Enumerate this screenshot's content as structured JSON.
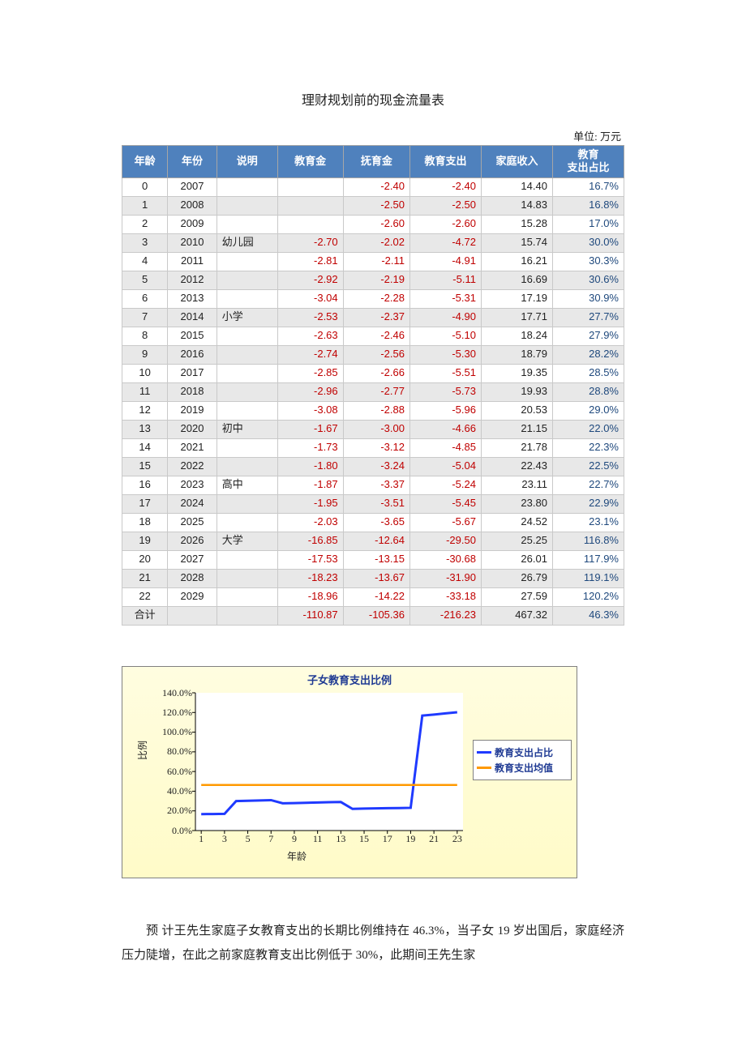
{
  "title": "理财规划前的现金流量表",
  "unit": "单位: 万元",
  "columns": [
    "年龄",
    "年份",
    "说明",
    "教育金",
    "抚育金",
    "教育支出",
    "家庭收入",
    "教育\n支出占比"
  ],
  "rows": [
    {
      "age": "0",
      "year": "2007",
      "note": "",
      "edu_fund": "",
      "raise_fund": "-2.40",
      "edu_out": "-2.40",
      "income": "14.40",
      "pct": "16.7%"
    },
    {
      "age": "1",
      "year": "2008",
      "note": "",
      "edu_fund": "",
      "raise_fund": "-2.50",
      "edu_out": "-2.50",
      "income": "14.83",
      "pct": "16.8%"
    },
    {
      "age": "2",
      "year": "2009",
      "note": "",
      "edu_fund": "",
      "raise_fund": "-2.60",
      "edu_out": "-2.60",
      "income": "15.28",
      "pct": "17.0%"
    },
    {
      "age": "3",
      "year": "2010",
      "note": "幼儿园",
      "edu_fund": "-2.70",
      "raise_fund": "-2.02",
      "edu_out": "-4.72",
      "income": "15.74",
      "pct": "30.0%"
    },
    {
      "age": "4",
      "year": "2011",
      "note": "",
      "edu_fund": "-2.81",
      "raise_fund": "-2.11",
      "edu_out": "-4.91",
      "income": "16.21",
      "pct": "30.3%"
    },
    {
      "age": "5",
      "year": "2012",
      "note": "",
      "edu_fund": "-2.92",
      "raise_fund": "-2.19",
      "edu_out": "-5.11",
      "income": "16.69",
      "pct": "30.6%"
    },
    {
      "age": "6",
      "year": "2013",
      "note": "",
      "edu_fund": "-3.04",
      "raise_fund": "-2.28",
      "edu_out": "-5.31",
      "income": "17.19",
      "pct": "30.9%"
    },
    {
      "age": "7",
      "year": "2014",
      "note": "小学",
      "edu_fund": "-2.53",
      "raise_fund": "-2.37",
      "edu_out": "-4.90",
      "income": "17.71",
      "pct": "27.7%"
    },
    {
      "age": "8",
      "year": "2015",
      "note": "",
      "edu_fund": "-2.63",
      "raise_fund": "-2.46",
      "edu_out": "-5.10",
      "income": "18.24",
      "pct": "27.9%"
    },
    {
      "age": "9",
      "year": "2016",
      "note": "",
      "edu_fund": "-2.74",
      "raise_fund": "-2.56",
      "edu_out": "-5.30",
      "income": "18.79",
      "pct": "28.2%"
    },
    {
      "age": "10",
      "year": "2017",
      "note": "",
      "edu_fund": "-2.85",
      "raise_fund": "-2.66",
      "edu_out": "-5.51",
      "income": "19.35",
      "pct": "28.5%"
    },
    {
      "age": "11",
      "year": "2018",
      "note": "",
      "edu_fund": "-2.96",
      "raise_fund": "-2.77",
      "edu_out": "-5.73",
      "income": "19.93",
      "pct": "28.8%"
    },
    {
      "age": "12",
      "year": "2019",
      "note": "",
      "edu_fund": "-3.08",
      "raise_fund": "-2.88",
      "edu_out": "-5.96",
      "income": "20.53",
      "pct": "29.0%"
    },
    {
      "age": "13",
      "year": "2020",
      "note": "初中",
      "edu_fund": "-1.67",
      "raise_fund": "-3.00",
      "edu_out": "-4.66",
      "income": "21.15",
      "pct": "22.0%"
    },
    {
      "age": "14",
      "year": "2021",
      "note": "",
      "edu_fund": "-1.73",
      "raise_fund": "-3.12",
      "edu_out": "-4.85",
      "income": "21.78",
      "pct": "22.3%"
    },
    {
      "age": "15",
      "year": "2022",
      "note": "",
      "edu_fund": "-1.80",
      "raise_fund": "-3.24",
      "edu_out": "-5.04",
      "income": "22.43",
      "pct": "22.5%"
    },
    {
      "age": "16",
      "year": "2023",
      "note": "高中",
      "edu_fund": "-1.87",
      "raise_fund": "-3.37",
      "edu_out": "-5.24",
      "income": "23.11",
      "pct": "22.7%"
    },
    {
      "age": "17",
      "year": "2024",
      "note": "",
      "edu_fund": "-1.95",
      "raise_fund": "-3.51",
      "edu_out": "-5.45",
      "income": "23.80",
      "pct": "22.9%"
    },
    {
      "age": "18",
      "year": "2025",
      "note": "",
      "edu_fund": "-2.03",
      "raise_fund": "-3.65",
      "edu_out": "-5.67",
      "income": "24.52",
      "pct": "23.1%"
    },
    {
      "age": "19",
      "year": "2026",
      "note": "大学",
      "edu_fund": "-16.85",
      "raise_fund": "-12.64",
      "edu_out": "-29.50",
      "income": "25.25",
      "pct": "116.8%"
    },
    {
      "age": "20",
      "year": "2027",
      "note": "",
      "edu_fund": "-17.53",
      "raise_fund": "-13.15",
      "edu_out": "-30.68",
      "income": "26.01",
      "pct": "117.9%"
    },
    {
      "age": "21",
      "year": "2028",
      "note": "",
      "edu_fund": "-18.23",
      "raise_fund": "-13.67",
      "edu_out": "-31.90",
      "income": "26.79",
      "pct": "119.1%"
    },
    {
      "age": "22",
      "year": "2029",
      "note": "",
      "edu_fund": "-18.96",
      "raise_fund": "-14.22",
      "edu_out": "-33.18",
      "income": "27.59",
      "pct": "120.2%"
    }
  ],
  "total_row": {
    "age": "合计",
    "year": "",
    "note": "",
    "edu_fund": "-110.87",
    "raise_fund": "-105.36",
    "edu_out": "-216.23",
    "income": "467.32",
    "pct": "46.3%"
  },
  "neg_color": "#c00000",
  "pct_color": "#1f497d",
  "header_bg": "#4f81bd",
  "chart": {
    "title": "子女教育支出比例",
    "ylabel": "比例",
    "xlabel": "年龄",
    "yticks": [
      "0.0%",
      "20.0%",
      "40.0%",
      "60.0%",
      "80.0%",
      "100.0%",
      "120.0%",
      "140.0%"
    ],
    "ylim": [
      0,
      140
    ],
    "xticks": [
      "1",
      "3",
      "5",
      "7",
      "9",
      "11",
      "13",
      "15",
      "17",
      "19",
      "21",
      "23"
    ],
    "xrange": 23,
    "series_ratio": {
      "label": "教育支出占比",
      "color": "#1f3aff",
      "width": 3,
      "y": [
        16.7,
        16.8,
        17.0,
        30.0,
        30.3,
        30.6,
        30.9,
        27.7,
        27.9,
        28.2,
        28.5,
        28.8,
        29.0,
        22.0,
        22.3,
        22.5,
        22.7,
        22.9,
        23.1,
        116.8,
        117.9,
        119.1,
        120.2
      ]
    },
    "series_mean": {
      "label": "教育支出均值",
      "color": "#ff9900",
      "width": 2.5,
      "value": 46.3
    }
  },
  "body_paragraph": "预 计王先生家庭子女教育支出的长期比例维持在 46.3%，当子女 19 岁出国后，家庭经济压力陡增，在此之前家庭教育支出比例低于 30%，此期间王先生家"
}
